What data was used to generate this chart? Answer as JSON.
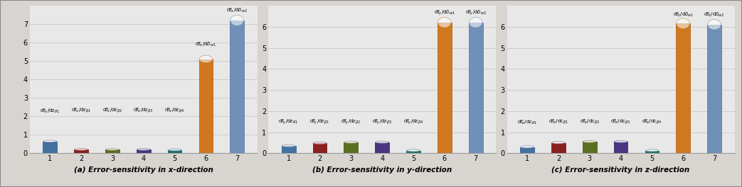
{
  "subplots": [
    {
      "title": "(a) Error-sensitivity in x-direction",
      "values": [
        0.65,
        0.2,
        0.2,
        0.2,
        0.18,
        5.1,
        7.2
      ],
      "ylim": [
        0,
        8
      ],
      "yticks": [
        0,
        1,
        2,
        3,
        4,
        5,
        6,
        7
      ],
      "annots": [
        [
          "df$_x$/d$\\varepsilon_{\\theta1}$",
          1,
          2.1
        ],
        [
          "df$_x$/d$\\varepsilon_{\\beta1}$",
          2,
          2.1
        ],
        [
          "df$_x$/d$\\varepsilon_{\\beta2}$",
          3,
          2.1
        ],
        [
          "df$_x$/d$\\varepsilon_{\\beta3}$",
          4,
          2.1
        ],
        [
          "df$_x$/d$\\varepsilon_{\\beta4}$",
          5,
          2.1
        ],
        [
          "df$_x$/d$\\delta_{w1}$",
          6,
          5.7
        ],
        [
          "df$_x$/d$\\delta_{w2}$",
          7,
          7.55
        ]
      ]
    },
    {
      "title": "(b) Error-sensitivity in y-direction",
      "values": [
        0.35,
        0.48,
        0.52,
        0.52,
        0.13,
        6.2,
        6.2
      ],
      "ylim": [
        0,
        7
      ],
      "yticks": [
        0,
        1,
        2,
        3,
        4,
        5,
        6
      ],
      "annots": [
        [
          "df$_y$/d$\\varepsilon_{\\theta1}$",
          1,
          1.3
        ],
        [
          "df$_y$/d$\\varepsilon_{\\beta1}$",
          2,
          1.3
        ],
        [
          "df$_y$/d$\\varepsilon_{\\beta2}$",
          3,
          1.3
        ],
        [
          "df$_y$/d$\\varepsilon_{\\beta3}$",
          4,
          1.3
        ],
        [
          "df$_y$/d$\\varepsilon_{\\beta4}$",
          5,
          1.3
        ],
        [
          "df$_y$/d$\\delta_{w1}$",
          6,
          6.45
        ],
        [
          "df$_y$/d$\\delta_{w2}$",
          7,
          6.45
        ]
      ]
    },
    {
      "title": "(c) Error-sensitivity in z-direction",
      "values": [
        0.3,
        0.5,
        0.55,
        0.55,
        0.13,
        6.15,
        6.1
      ],
      "ylim": [
        0,
        7
      ],
      "yticks": [
        0,
        1,
        2,
        3,
        4,
        5,
        6
      ],
      "annots": [
        [
          "df$_z$/dc$_{\\theta1}$",
          1,
          1.3
        ],
        [
          "df$_z$/dc$_{\\beta1}$",
          2,
          1.3
        ],
        [
          "df$_z$/dc$_{\\beta2}$",
          3,
          1.3
        ],
        [
          "df$_z$/dc$_{\\beta3}$",
          4,
          1.3
        ],
        [
          "df$_z$/dc$_{\\beta4}$",
          5,
          1.3
        ],
        [
          "df$_z$/d$\\delta_{w1}$",
          6,
          6.4
        ],
        [
          "df$_z$/d$\\delta_{w2}$",
          7,
          6.4
        ]
      ]
    }
  ],
  "bar_colors": [
    "#4472a0",
    "#8b2020",
    "#5a7020",
    "#4a3580",
    "#207070",
    "#d07820",
    "#7090b8"
  ],
  "bar_colors_dark": [
    "#2a5080",
    "#6b0808",
    "#3a5008",
    "#2a1560",
    "#085050",
    "#b05800",
    "#5070a0"
  ],
  "x_positions": [
    1,
    2,
    3,
    4,
    5,
    6,
    7
  ],
  "plot_bg_color": "#e8e8e8",
  "fig_bg_color": "#f5f5f0",
  "outer_bg_color": "#d8d5d0",
  "grid_color": "#c8c8c8",
  "annotation_fontsize": 5.0,
  "title_fontsize": 7.5,
  "bar_width": 0.45
}
